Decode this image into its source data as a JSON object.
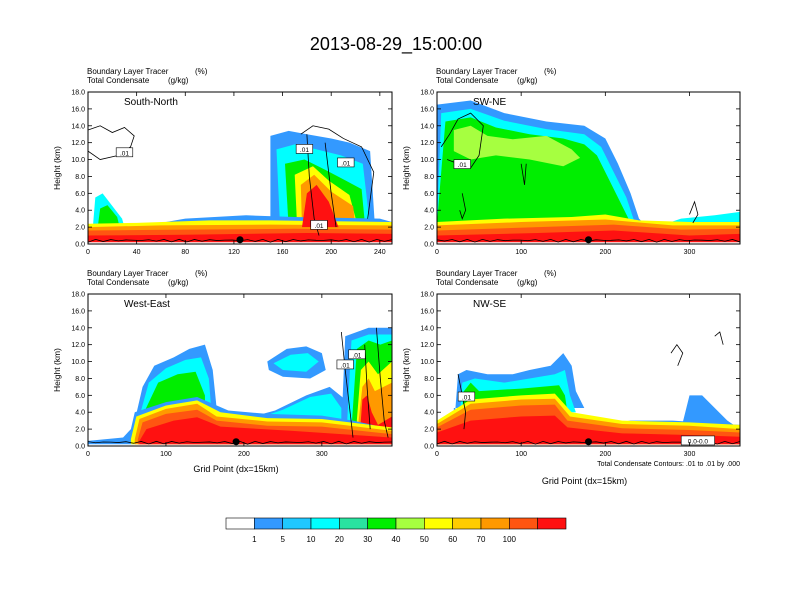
{
  "figure": {
    "title": "2013-08-29_15:00:00",
    "footnote": "Total Condensate Contours: .01 to .01 by .000"
  },
  "palette": {
    "white": "#ffffff",
    "blue": "#3399ff",
    "lightblue": "#1fc8ff",
    "cyan": "#00ffff",
    "aqua": "#29e3a0",
    "teal": "#22d88a",
    "green": "#00ee00",
    "lime": "#a6ff40",
    "yellow": "#ffff00",
    "gold": "#ffcc00",
    "orange": "#ff9900",
    "redorange": "#ff5511",
    "red": "#ff1111"
  },
  "colorbar": {
    "labels": [
      "1",
      "5",
      "10",
      "20",
      "30",
      "40",
      "50",
      "60",
      "70",
      "100"
    ],
    "colors": [
      "#ffffff",
      "#3399ff",
      "#1fc8ff",
      "#00ffff",
      "#29e3a0",
      "#00ee00",
      "#a6ff40",
      "#ffff00",
      "#ffcc00",
      "#ff9900",
      "#ff5511",
      "#ff1111"
    ]
  },
  "chart_data": [
    {
      "type": "heatmap",
      "panel": "top-left",
      "label": "South-North",
      "left_title": "Boundary Layer Tracer",
      "left_title_unit": "(%)",
      "left_subtitle": "Total Condensate",
      "left_subtitle_unit": "(g/kg)",
      "ylabel": "Height (km)",
      "xlabel": "",
      "xlim": [
        0,
        250
      ],
      "ylim": [
        0,
        18
      ],
      "xticks": [
        "0",
        "40",
        "80",
        "120",
        "160",
        "200",
        "240"
      ],
      "yticks": [
        "0.0",
        "2.0",
        "4.0",
        "6.0",
        "8.0",
        "10.0",
        "12.0",
        "14.0",
        "16.0",
        "18.0"
      ],
      "contour_labels": [
        ".01",
        ".01",
        ".01",
        ".01"
      ],
      "marker_x": 125,
      "tracer_plumes": [
        {
          "x": [
            0,
            250
          ],
          "top_km": 2.0,
          "level": "red"
        },
        {
          "x": [
            5,
            30
          ],
          "top_km": 5.0,
          "level": "green"
        },
        {
          "x": [
            155,
            230
          ],
          "top_km": 12.5,
          "level": "cyan"
        },
        {
          "x": [
            175,
            215
          ],
          "top_km": 9.0,
          "level": "red"
        }
      ]
    },
    {
      "type": "heatmap",
      "panel": "top-right",
      "label": "SW-NE",
      "left_title": "Boundary Layer Tracer",
      "left_title_unit": "(%)",
      "left_subtitle": "Total Condensate",
      "left_subtitle_unit": "(g/kg)",
      "ylabel": "Height (km)",
      "xlabel": "",
      "xlim": [
        0,
        360
      ],
      "ylim": [
        0,
        18
      ],
      "xticks": [
        "0",
        "100",
        "200",
        "300"
      ],
      "yticks": [
        "0.0",
        "2.0",
        "4.0",
        "6.0",
        "8.0",
        "10.0",
        "12.0",
        "14.0",
        "16.0",
        "18.0"
      ],
      "contour_labels": [
        ".01"
      ],
      "marker_x": 180,
      "tracer_plumes": [
        {
          "x": [
            0,
            360
          ],
          "top_km": 2.0,
          "level": "red"
        },
        {
          "x": [
            0,
            200
          ],
          "top_km": 16.5,
          "level": "cyan"
        },
        {
          "x": [
            60,
            180
          ],
          "top_km": 13.5,
          "level": "green"
        }
      ]
    },
    {
      "type": "heatmap",
      "panel": "bottom-left",
      "label": "West-East",
      "left_title": "Boundary Layer Tracer",
      "left_title_unit": "(%)",
      "left_subtitle": "Total Condensate",
      "left_subtitle_unit": "(g/kg)",
      "ylabel": "Height (km)",
      "xlabel": "Grid Point (dx=15km)",
      "xlim": [
        0,
        390
      ],
      "ylim": [
        0,
        18
      ],
      "xticks": [
        "0",
        "100",
        "200",
        "300"
      ],
      "yticks": [
        "0.0",
        "2.0",
        "4.0",
        "6.0",
        "8.0",
        "10.0",
        "12.0",
        "14.0",
        "16.0",
        "18.0"
      ],
      "contour_labels": [
        ".01",
        ".01"
      ],
      "marker_x": 190,
      "tracer_plumes": [
        {
          "x": [
            50,
            390
          ],
          "top_km": 3.5,
          "level": "red"
        },
        {
          "x": [
            60,
            160
          ],
          "top_km": 9.0,
          "level": "cyan"
        },
        {
          "x": [
            330,
            390
          ],
          "top_km": 13.5,
          "level": "green"
        }
      ]
    },
    {
      "type": "heatmap",
      "panel": "bottom-right",
      "label": "NW-SE",
      "left_title": "Boundary Layer Tracer",
      "left_title_unit": "(%)",
      "left_subtitle": "Total Condensate",
      "left_subtitle_unit": "(g/kg)",
      "ylabel": "Height (km)",
      "xlabel": "Grid Point (dx=15km)",
      "xlim": [
        0,
        360
      ],
      "ylim": [
        0,
        18
      ],
      "xticks": [
        "0",
        "100",
        "200",
        "300"
      ],
      "yticks": [
        "0.0",
        "2.0",
        "4.0",
        "6.0",
        "8.0",
        "10.0",
        "12.0",
        "14.0",
        "16.0",
        "18.0"
      ],
      "contour_labels": [
        ".01",
        "0.0-0.0"
      ],
      "marker_x": 180,
      "tracer_plumes": [
        {
          "x": [
            0,
            360
          ],
          "top_km": 2.0,
          "level": "red"
        },
        {
          "x": [
            0,
            140
          ],
          "top_km": 6.0,
          "level": "red"
        },
        {
          "x": [
            20,
            160
          ],
          "top_km": 9.0,
          "level": "cyan"
        }
      ]
    }
  ]
}
